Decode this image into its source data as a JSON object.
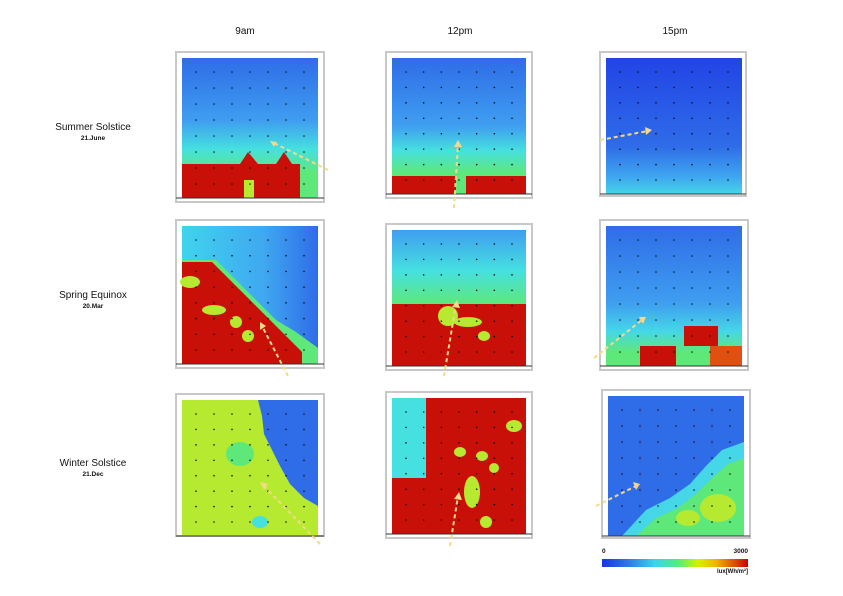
{
  "columns": [
    "9am",
    "12pm",
    "15pm"
  ],
  "rows": [
    {
      "title": "Summer Solstice",
      "date": "21.June"
    },
    {
      "title": "Spring Equinox",
      "date": "20.Mar"
    },
    {
      "title": "Winter Solstice",
      "date": "21.Dec"
    }
  ],
  "legend": {
    "min": "0",
    "max": "3000",
    "unit": "lux[Wh/m²]"
  },
  "colors": {
    "low": "#2a62ea",
    "cyan": "#3fd4ee",
    "green": "#5ee87a",
    "lime": "#b6ea30",
    "high": "#c81008",
    "arrow": "#f3d98a"
  },
  "chart_data": {
    "type": "heatmap",
    "title": "",
    "color_scale": {
      "min": 0,
      "max": 3000,
      "unit": "lux[Wh/m²]"
    },
    "panels": [
      {
        "row": "Summer Solstice",
        "column": "9am",
        "dominant": "blue",
        "high_zone": "bottom band"
      },
      {
        "row": "Summer Solstice",
        "column": "12pm",
        "dominant": "blue",
        "high_zone": "bottom band"
      },
      {
        "row": "Summer Solstice",
        "column": "15pm",
        "dominant": "blue",
        "high_zone": "none"
      },
      {
        "row": "Spring Equinox",
        "column": "9am",
        "dominant": "red",
        "high_zone": "lower-left diagonal"
      },
      {
        "row": "Spring Equinox",
        "column": "12pm",
        "dominant": "mixed",
        "high_zone": "lower half"
      },
      {
        "row": "Spring Equinox",
        "column": "15pm",
        "dominant": "blue",
        "high_zone": "bottom-right corner"
      },
      {
        "row": "Winter Solstice",
        "column": "9am",
        "dominant": "green",
        "high_zone": "none"
      },
      {
        "row": "Winter Solstice",
        "column": "12pm",
        "dominant": "red",
        "high_zone": "most of panel"
      },
      {
        "row": "Winter Solstice",
        "column": "15pm",
        "dominant": "blue",
        "high_zone": "none"
      }
    ]
  }
}
